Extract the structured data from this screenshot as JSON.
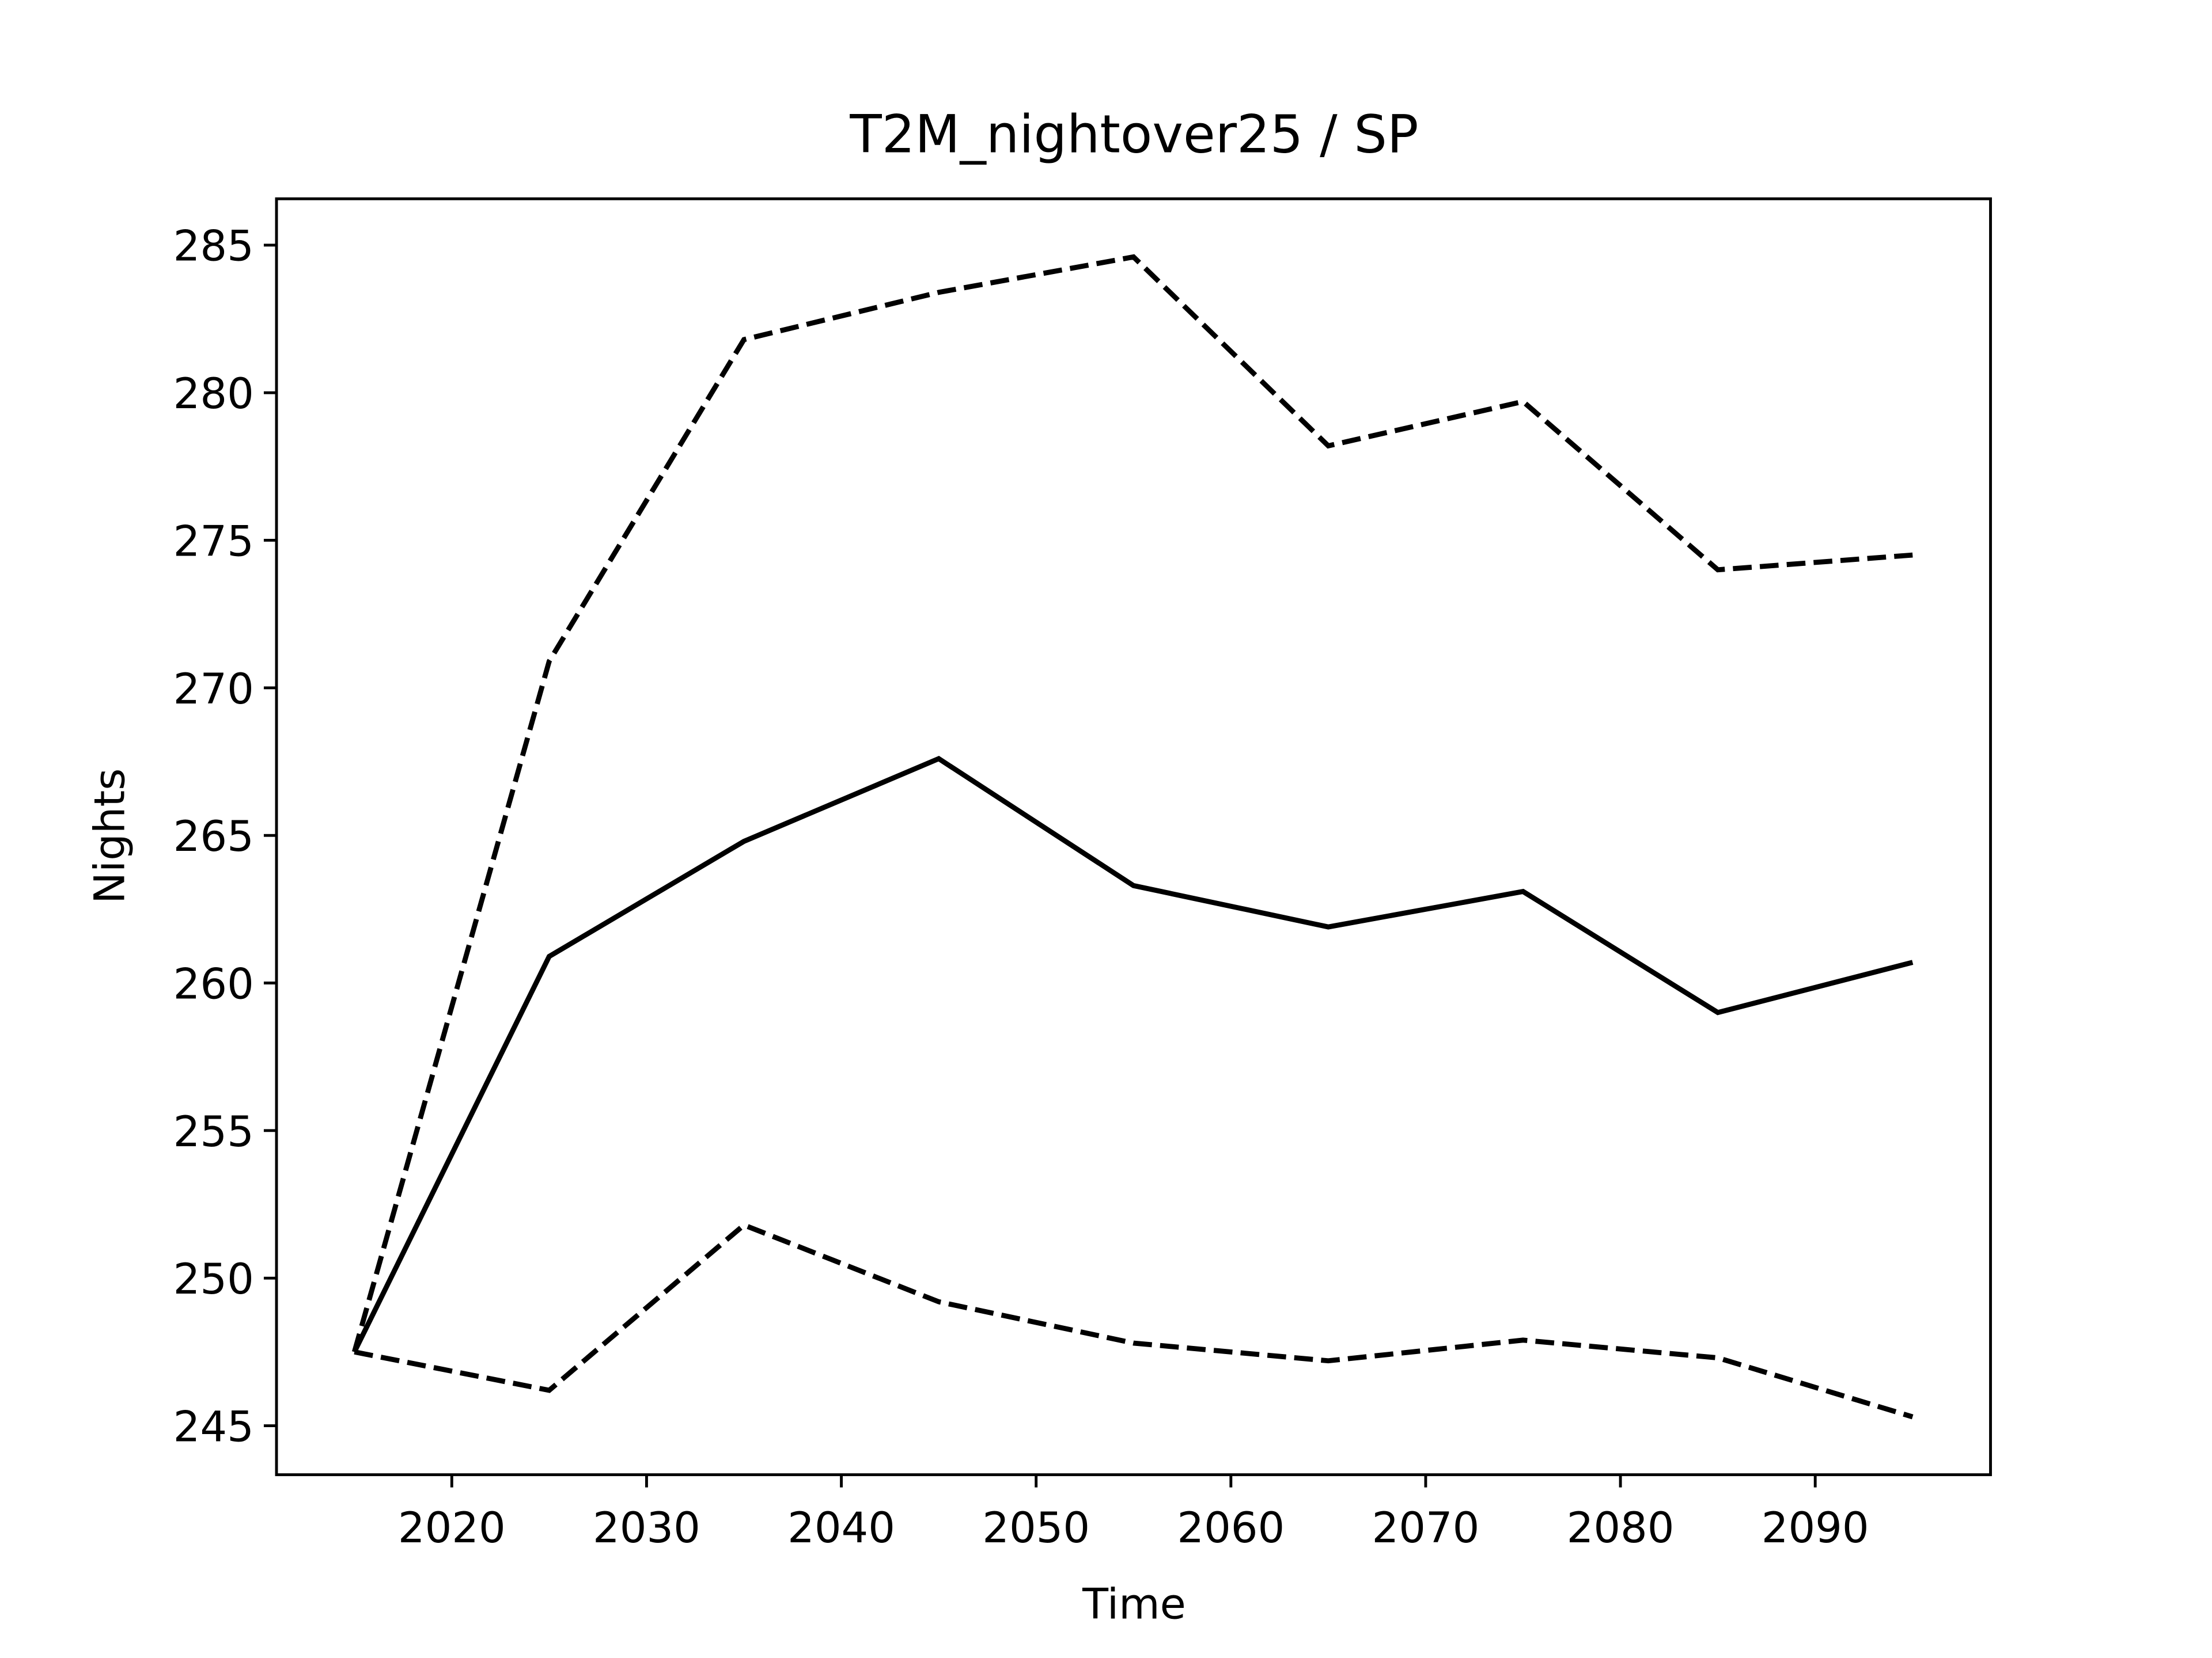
{
  "chart_data": {
    "type": "line",
    "title": "T2M_nightover25 / SP",
    "x_label": "Time",
    "y_label": "Nights",
    "x": [
      2015,
      2025,
      2035,
      2045,
      2055,
      2065,
      2075,
      2085,
      2095
    ],
    "series": [
      {
        "color": "#000000",
        "dash": "solid",
        "values": [
          247.5,
          260.9,
          264.8,
          267.6,
          263.3,
          261.9,
          263.1,
          259.0,
          260.7
        ]
      },
      {
        "color": "#000000",
        "dash": "dashed",
        "values": [
          247.5,
          270.9,
          281.8,
          283.4,
          284.6,
          278.2,
          279.7,
          274.0,
          274.5
        ]
      },
      {
        "color": "#000000",
        "dash": "dashed",
        "values": [
          247.5,
          246.2,
          251.8,
          249.2,
          247.8,
          247.2,
          247.9,
          247.3,
          245.3
        ]
      }
    ],
    "xlim": [
      2011,
      2099
    ],
    "ylim": [
      243.34,
      286.57
    ],
    "xticks": [
      2020,
      2030,
      2040,
      2050,
      2060,
      2070,
      2080,
      2090
    ],
    "yticks": [
      245,
      250,
      255,
      260,
      265,
      270,
      275,
      280,
      285
    ],
    "grid": false
  }
}
